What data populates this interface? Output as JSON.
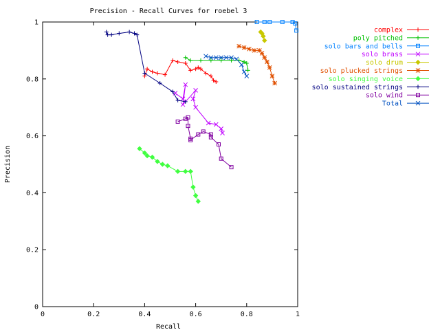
{
  "chart_data": {
    "type": "line",
    "title": "Precision - Recall Curves for roebel 3",
    "xlabel": "Recall",
    "ylabel": "Precision",
    "xlim": [
      0,
      1
    ],
    "ylim": [
      0,
      1
    ],
    "xticks": [
      "0",
      "0.2",
      "0.4",
      "0.6",
      "0.8",
      "1"
    ],
    "yticks": [
      "0",
      "0.2",
      "0.4",
      "0.6",
      "0.8",
      "1"
    ],
    "grid": false,
    "legend_position": "top-right",
    "series": [
      {
        "name": "complex",
        "color": "#ff0000",
        "marker": "plus",
        "x": [
          0.4,
          0.41,
          0.43,
          0.45,
          0.48,
          0.51,
          0.53,
          0.56,
          0.58,
          0.6,
          0.61,
          0.62,
          0.64,
          0.66,
          0.67,
          0.68
        ],
        "y": [
          0.81,
          0.835,
          0.825,
          0.82,
          0.815,
          0.865,
          0.86,
          0.855,
          0.83,
          0.835,
          0.84,
          0.835,
          0.82,
          0.81,
          0.795,
          0.79
        ]
      },
      {
        "name": "poly pitched",
        "color": "#00c000",
        "marker": "plus",
        "x": [
          0.56,
          0.58,
          0.62,
          0.66,
          0.7,
          0.74,
          0.77,
          0.79,
          0.8,
          0.805
        ],
        "y": [
          0.875,
          0.865,
          0.865,
          0.865,
          0.865,
          0.865,
          0.865,
          0.86,
          0.855,
          0.83
        ]
      },
      {
        "name": "solo bars and bells",
        "color": "#0080ff",
        "marker": "square",
        "x": [
          0.84,
          0.87,
          0.89,
          0.94,
          0.98,
          0.99,
          0.995
        ],
        "y": [
          1.0,
          1.0,
          1.0,
          1.0,
          1.0,
          0.995,
          0.97
        ]
      },
      {
        "name": "solo brass",
        "color": "#c000ff",
        "marker": "x",
        "x": [
          0.52,
          0.55,
          0.56,
          0.55,
          0.6,
          0.59,
          0.6,
          0.65,
          0.68,
          0.7,
          0.705
        ],
        "y": [
          0.75,
          0.73,
          0.78,
          0.71,
          0.76,
          0.73,
          0.7,
          0.645,
          0.64,
          0.625,
          0.61
        ]
      },
      {
        "name": "solo drum",
        "color": "#c8c800",
        "marker": "diamond",
        "x": [
          0.855,
          0.86,
          0.865,
          0.87
        ],
        "y": [
          0.965,
          0.96,
          0.95,
          0.935
        ]
      },
      {
        "name": "solo plucked strings",
        "color": "#e05000",
        "marker": "star",
        "x": [
          0.77,
          0.79,
          0.81,
          0.83,
          0.85,
          0.86,
          0.87,
          0.88,
          0.89,
          0.9,
          0.91
        ],
        "y": [
          0.915,
          0.91,
          0.905,
          0.9,
          0.9,
          0.89,
          0.875,
          0.86,
          0.84,
          0.81,
          0.785
        ]
      },
      {
        "name": "solo singing voice",
        "color": "#40ff40",
        "marker": "diamond",
        "x": [
          0.38,
          0.4,
          0.41,
          0.43,
          0.45,
          0.47,
          0.49,
          0.53,
          0.56,
          0.58,
          0.59,
          0.6,
          0.61
        ],
        "y": [
          0.555,
          0.54,
          0.53,
          0.525,
          0.51,
          0.5,
          0.495,
          0.475,
          0.475,
          0.475,
          0.42,
          0.39,
          0.37
        ]
      },
      {
        "name": "solo sustained strings",
        "color": "#000080",
        "marker": "plus",
        "x": [
          0.25,
          0.255,
          0.27,
          0.3,
          0.34,
          0.36,
          0.37,
          0.4,
          0.46,
          0.51,
          0.53,
          0.56
        ],
        "y": [
          0.965,
          0.955,
          0.955,
          0.96,
          0.965,
          0.96,
          0.955,
          0.82,
          0.785,
          0.755,
          0.725,
          0.72
        ]
      },
      {
        "name": "solo wind",
        "color": "#8000a0",
        "marker": "square",
        "x": [
          0.53,
          0.56,
          0.57,
          0.57,
          0.58,
          0.58,
          0.61,
          0.63,
          0.66,
          0.66,
          0.69,
          0.7,
          0.74
        ],
        "y": [
          0.65,
          0.66,
          0.665,
          0.635,
          0.59,
          0.585,
          0.605,
          0.615,
          0.605,
          0.595,
          0.57,
          0.52,
          0.49
        ]
      },
      {
        "name": "Total",
        "color": "#0050c0",
        "marker": "x",
        "x": [
          0.64,
          0.66,
          0.68,
          0.7,
          0.72,
          0.74,
          0.76,
          0.78,
          0.79,
          0.8
        ],
        "y": [
          0.88,
          0.875,
          0.875,
          0.875,
          0.875,
          0.875,
          0.87,
          0.85,
          0.825,
          0.81
        ]
      }
    ]
  }
}
